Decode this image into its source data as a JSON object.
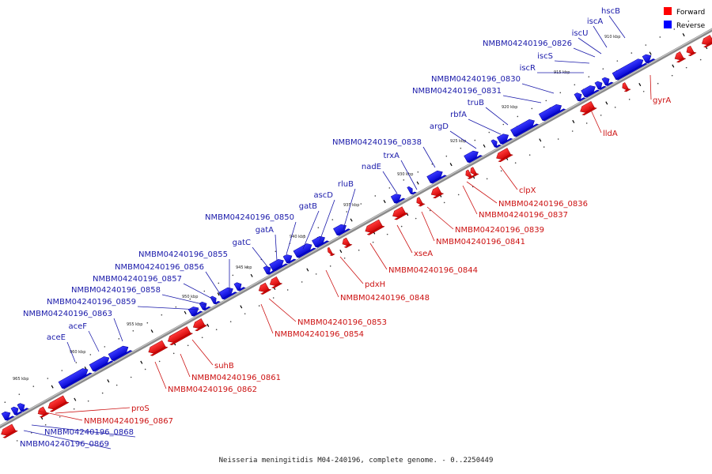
{
  "caption": "Neisseria meningitidis M04-240196, complete genome. - 0..2250449",
  "legend": {
    "forward_label": "Forward",
    "reverse_label": "Reverse",
    "forward_color": "#ff0000",
    "reverse_color": "#0000ff"
  },
  "scale_labels": [
    "910 kbp",
    "915 kbp",
    "920 kbp",
    "925 kbp",
    "930 kbp",
    "935 kbp",
    "940 kbp",
    "945 kbp",
    "950 kbp",
    "955 kbp",
    "960 kbp",
    "965 kbp"
  ],
  "genes_reverse": [
    "hscB",
    "iscA",
    "iscU",
    "NMBM04240196_0826",
    "iscS",
    "iscR",
    "NMBM04240196_0830",
    "NMBM04240196_0831",
    "truB",
    "rbfA",
    "argD",
    "NMBM04240196_0838",
    "trxA",
    "nadE",
    "rluB",
    "ascD",
    "gatB",
    "NMBM04240196_0850",
    "gatA",
    "gatC",
    "NMBM04240196_0855",
    "NMBM04240196_0856",
    "NMBM04240196_0857",
    "NMBM04240196_0858",
    "NMBM04240196_0859",
    "NMBM04240196_0863",
    "aceF",
    "aceE",
    "NMBM04240196_0868",
    "NMBM04240196_0869"
  ],
  "genes_forward": [
    "gyrA",
    "lldA",
    "clpX",
    "NMBM04240196_0836",
    "NMBM04240196_0837",
    "NMBM04240196_0839",
    "NMBM04240196_0841",
    "xseA",
    "NMBM04240196_0844",
    "pdxH",
    "NMBM04240196_0848",
    "NMBM04240196_0853",
    "NMBM04240196_0854",
    "suhB",
    "NMBM04240196_0861",
    "NMBM04240196_0862",
    "proS",
    "NMBM04240196_0867"
  ]
}
